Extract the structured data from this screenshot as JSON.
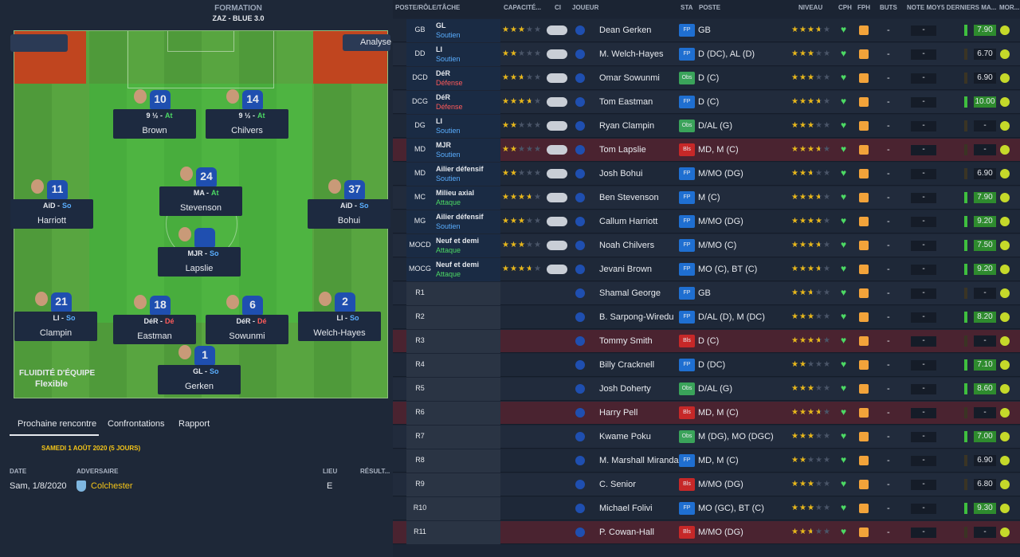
{
  "formation": {
    "title": "FORMATION",
    "tactic": "ZAZ - BLUE 3.0",
    "analysis": "Analyse",
    "players": [
      {
        "number": 10,
        "role": "9 ½ -",
        "duty": "At",
        "name": "Brown"
      },
      {
        "number": 14,
        "role": "9 ½ -",
        "duty": "At",
        "name": "Chilvers"
      },
      {
        "number": 24,
        "role": "MA -",
        "duty": "At",
        "name": "Stevenson"
      },
      {
        "number": 11,
        "role": "AiD -",
        "duty": "So",
        "name": "Harriott"
      },
      {
        "number": 37,
        "role": "AiD -",
        "duty": "So",
        "name": "Bohui"
      },
      {
        "role": "MJR -",
        "duty": "So",
        "name": "Lapslie"
      },
      {
        "number": 21,
        "role": "LI -",
        "duty": "So",
        "name": "Clampin"
      },
      {
        "number": 18,
        "role": "DéR -",
        "duty": "Dé",
        "name": "Eastman"
      },
      {
        "number": 6,
        "role": "DéR -",
        "duty": "Dé",
        "name": "Sowunmi"
      },
      {
        "number": 2,
        "role": "LI -",
        "duty": "So",
        "name": "Welch-Hayes"
      },
      {
        "number": 1,
        "role": "GL -",
        "duty": "So",
        "name": "Gerken"
      }
    ],
    "fluidity_label": "FLUIDITÉ D'ÉQUIPE",
    "fluidity": "Flexible"
  },
  "duty_colors": {
    "At": "#4cd964",
    "So": "#5aaeff",
    "Dé": "#ff5a5a",
    "Soutien": "#5aaeff",
    "Défense": "#ff5a5a",
    "Attaque": "#4cd964"
  },
  "sta_colors": {
    "FP": "#1f6fd1",
    "Obs": "#3aa35a",
    "Bls": "#c62828"
  },
  "tabs": [
    "Prochaine rencontre",
    "Confrontations",
    "Rapport"
  ],
  "match": {
    "heading": "SAMEDI 1 AOÛT 2020 (5 JOURS)",
    "columns": [
      "DATE",
      "ADVERSAIRE",
      "LIEU",
      "RÉSULT..."
    ],
    "date": "Sam, 1/8/2020",
    "opponent": "Colchester",
    "venue": "E"
  },
  "table": {
    "columns": [
      "POSTE/RÔLE/TÂCHE",
      "CAPACITÉ...",
      "CI",
      "JOUEUR",
      "STA",
      "POSTE",
      "NIVEAU",
      "CPH",
      "FPH",
      "BUTS",
      "NOTE MOY",
      "5 DERNIERS MA...",
      "MOR..."
    ],
    "rows": [
      {
        "pos": "GB",
        "role": "GL",
        "duty": "Soutien",
        "capacity": 3,
        "player": "Dean Gerken",
        "sta": "FP",
        "position": "GB",
        "level": 3.5,
        "goals": "-",
        "rating": "-",
        "last5": "7.90"
      },
      {
        "pos": "DD",
        "role": "LI",
        "duty": "Soutien",
        "capacity": 2,
        "player": "M. Welch-Hayes",
        "sta": "FP",
        "position": "D (DC), AL (D)",
        "level": 3,
        "goals": "-",
        "rating": "-",
        "last5": "6.70"
      },
      {
        "pos": "DCD",
        "role": "DéR",
        "duty": "Défense",
        "capacity": 2.5,
        "player": "Omar Sowunmi",
        "sta": "Obs",
        "position": "D (C)",
        "level": 3,
        "goals": "-",
        "rating": "-",
        "last5": "6.90"
      },
      {
        "pos": "DCG",
        "role": "DéR",
        "duty": "Défense",
        "capacity": 3.5,
        "player": "Tom Eastman",
        "sta": "FP",
        "position": "D (C)",
        "level": 3.5,
        "goals": "-",
        "rating": "-",
        "last5": "10.00"
      },
      {
        "pos": "DG",
        "role": "LI",
        "duty": "Soutien",
        "capacity": 2,
        "player": "Ryan Clampin",
        "sta": "Obs",
        "position": "D/AL (G)",
        "level": 3,
        "goals": "-",
        "rating": "-",
        "last5": "-"
      },
      {
        "pos": "MD",
        "role": "MJR",
        "duty": "Soutien",
        "capacity": 2,
        "player": "Tom Lapslie",
        "sta": "Bls",
        "position": "MD, M (C)",
        "level": 3.5,
        "goals": "-",
        "rating": "-",
        "last5": "-",
        "highlight": true
      },
      {
        "pos": "MD",
        "role": "Ailier défensif",
        "duty": "Soutien",
        "capacity": 2,
        "player": "Josh Bohui",
        "sta": "FP",
        "position": "M/MO (DG)",
        "level": 2.5,
        "goals": "-",
        "rating": "-",
        "last5": "6.90"
      },
      {
        "pos": "MC",
        "role": "Milieu axial",
        "duty": "Attaque",
        "capacity": 3.5,
        "player": "Ben Stevenson",
        "sta": "FP",
        "position": "M (C)",
        "level": 3.5,
        "goals": "-",
        "rating": "-",
        "last5": "7.90"
      },
      {
        "pos": "MG",
        "role": "Ailier défensif",
        "duty": "Soutien",
        "capacity": 3,
        "player": "Callum Harriott",
        "sta": "FP",
        "position": "M/MO (DG)",
        "level": 4,
        "goals": "-",
        "rating": "-",
        "last5": "9.20"
      },
      {
        "pos": "MOCD",
        "role": "Neuf et demi",
        "duty": "Attaque",
        "capacity": 3,
        "player": "Noah Chilvers",
        "sta": "FP",
        "position": "M/MO (C)",
        "level": 3.5,
        "goals": "-",
        "rating": "-",
        "last5": "7.50"
      },
      {
        "pos": "MOCG",
        "role": "Neuf et demi",
        "duty": "Attaque",
        "capacity": 3.5,
        "player": "Jevani Brown",
        "sta": "FP",
        "position": "MO (C), BT (C)",
        "level": 3.5,
        "goals": "-",
        "rating": "-",
        "last5": "9.20"
      },
      {
        "pos": "R1",
        "player": "Shamal George",
        "sta": "FP",
        "position": "GB",
        "level": 2.5,
        "goals": "-",
        "rating": "-",
        "last5": "-"
      },
      {
        "pos": "R2",
        "player": "B. Sarpong-Wiredu",
        "sta": "FP",
        "position": "D/AL (D), M (DC)",
        "level": 3,
        "goals": "-",
        "rating": "-",
        "last5": "8.20"
      },
      {
        "pos": "R3",
        "player": "Tommy Smith",
        "sta": "Bls",
        "position": "D (C)",
        "level": 3.5,
        "goals": "-",
        "rating": "-",
        "last5": "-",
        "highlight": true
      },
      {
        "pos": "R4",
        "player": "Billy Cracknell",
        "sta": "FP",
        "position": "D (DC)",
        "level": 2,
        "goals": "-",
        "rating": "-",
        "last5": "7.10"
      },
      {
        "pos": "R5",
        "player": "Josh Doherty",
        "sta": "Obs",
        "position": "D/AL (G)",
        "level": 3,
        "goals": "-",
        "rating": "-",
        "last5": "8.60"
      },
      {
        "pos": "R6",
        "player": "Harry Pell",
        "sta": "Bls",
        "position": "MD, M (C)",
        "level": 3.5,
        "goals": "-",
        "rating": "-",
        "last5": "-",
        "highlight": true
      },
      {
        "pos": "R7",
        "player": "Kwame Poku",
        "sta": "Obs",
        "position": "M (DG), MO (DGC)",
        "level": 3,
        "goals": "-",
        "rating": "-",
        "last5": "7.00"
      },
      {
        "pos": "R8",
        "player": "M. Marshall Miranda",
        "sta": "FP",
        "position": "MD, M (C)",
        "level": 2,
        "goals": "-",
        "rating": "-",
        "last5": "6.90"
      },
      {
        "pos": "R9",
        "player": "C. Senior",
        "sta": "Bls",
        "position": "M/MO (DG)",
        "level": 3,
        "goals": "-",
        "rating": "-",
        "last5": "6.80"
      },
      {
        "pos": "R10",
        "player": "Michael Folivi",
        "sta": "FP",
        "position": "MO (GC), BT (C)",
        "level": 3,
        "goals": "-",
        "rating": "-",
        "last5": "9.30"
      },
      {
        "pos": "R11",
        "player": "P. Cowan-Hall",
        "sta": "Bls",
        "position": "M/MO (DG)",
        "level": 2.5,
        "goals": "-",
        "rating": "-",
        "last5": "-",
        "highlight": true
      }
    ]
  }
}
